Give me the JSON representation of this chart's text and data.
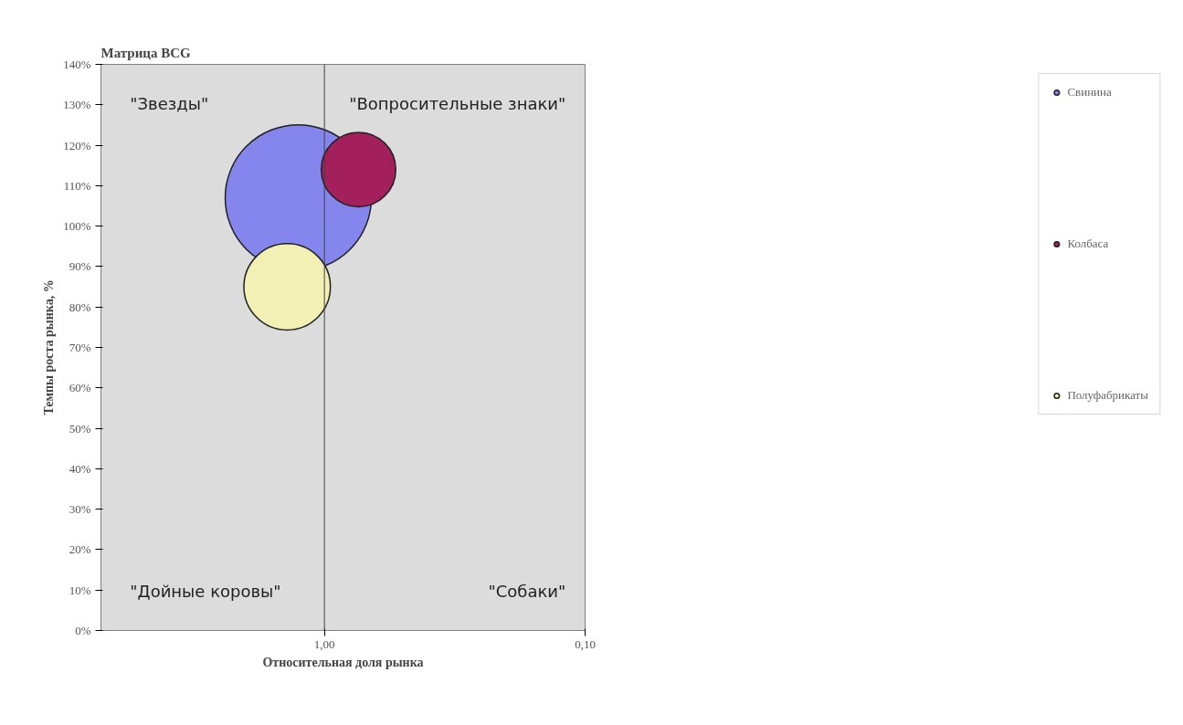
{
  "chart_data": {
    "type": "bubble",
    "title": "Матрица BCG",
    "xlabel": "Относительная доля рынка",
    "ylabel": "Темпы роста рынка, %",
    "log": "x",
    "xlim": [
      7.2,
      0.1
    ],
    "xticks": [
      {
        "value": 1,
        "label": "1,00"
      },
      {
        "value": 0.1,
        "label": "0,10"
      }
    ],
    "ylim": [
      0,
      140
    ],
    "yticks": [
      {
        "value": 0,
        "label": "0%"
      },
      {
        "value": 10,
        "label": "10%"
      },
      {
        "value": 20,
        "label": "20%"
      },
      {
        "value": 30,
        "label": "30%"
      },
      {
        "value": 40,
        "label": "40%"
      },
      {
        "value": 50,
        "label": "50%"
      },
      {
        "value": 60,
        "label": "60%"
      },
      {
        "value": 70,
        "label": "70%"
      },
      {
        "value": 80,
        "label": "80%"
      },
      {
        "value": 90,
        "label": "90%"
      },
      {
        "value": 100,
        "label": "100%"
      },
      {
        "value": 110,
        "label": "110%"
      },
      {
        "value": 120,
        "label": "120%"
      },
      {
        "value": 130,
        "label": "130%"
      },
      {
        "value": 140,
        "label": "140%"
      }
    ],
    "grid": false,
    "legend": "right",
    "ref_lines": [
      {
        "axis": "x",
        "value": 1,
        "color": "#404040"
      }
    ],
    "annotations": [
      "\"Звезды\"",
      "\"Вопросительные знаки\"",
      "\"Дойные коровы\"",
      "\"Собаки\""
    ],
    "series": [
      {
        "name": "Свинина",
        "color": "#8585ee",
        "x": [
          1.26
        ],
        "values": [
          107
        ],
        "sizes": [
          1
        ]
      },
      {
        "name": "Колбаса",
        "color": "#a3205c",
        "x": [
          0.74
        ],
        "values": [
          114
        ],
        "sizes": [
          0.26
        ]
      },
      {
        "name": "Полуфабрикаты",
        "color": "#f2f0b4",
        "x": [
          1.39
        ],
        "values": [
          85
        ],
        "sizes": [
          0.35
        ]
      }
    ]
  }
}
